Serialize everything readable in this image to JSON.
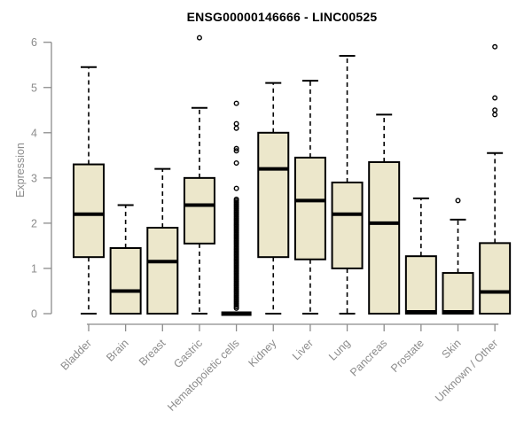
{
  "chart_data": {
    "type": "boxplot",
    "title": "ENSG00000146666 - LINC00525",
    "ylabel": "Expression",
    "xlabel": "",
    "ylim": [
      0,
      6.2
    ],
    "yticks": [
      "0",
      "1",
      "2",
      "3",
      "4",
      "5",
      "6"
    ],
    "grid": false,
    "legend": null,
    "categories": [
      "Bladder",
      "Brain",
      "Breast",
      "Gastric",
      "Hematopoietic cells",
      "Kidney",
      "Liver",
      "Lung",
      "Pancreas",
      "Prostate",
      "Skin",
      "Unknown / Other"
    ],
    "boxes": [
      {
        "label": "Bladder",
        "whisker_low": 0,
        "q1": 1.25,
        "median": 2.2,
        "q3": 3.3,
        "whisker_high": 5.45,
        "outliers": []
      },
      {
        "label": "Brain",
        "whisker_low": 0,
        "q1": 0,
        "median": 0.5,
        "q3": 1.45,
        "whisker_high": 2.4,
        "outliers": []
      },
      {
        "label": "Breast",
        "whisker_low": 0,
        "q1": 0,
        "median": 1.15,
        "q3": 1.9,
        "whisker_high": 3.2,
        "outliers": []
      },
      {
        "label": "Gastric",
        "whisker_low": 0,
        "q1": 1.55,
        "median": 2.4,
        "q3": 3.0,
        "whisker_high": 4.55,
        "outliers": [
          6.1
        ]
      },
      {
        "label": "Hematopoietic cells",
        "whisker_low": 0,
        "q1": 0,
        "median": 0,
        "q3": 0,
        "whisker_high": 0,
        "outliers": [
          4.65,
          4.2,
          4.1,
          3.65,
          3.6,
          3.33,
          2.77
        ],
        "outlier_stack": {
          "min": 0.12,
          "max": 2.53,
          "count": 70
        }
      },
      {
        "label": "Kidney",
        "whisker_low": 0,
        "q1": 1.25,
        "median": 3.2,
        "q3": 4.0,
        "whisker_high": 5.1,
        "outliers": []
      },
      {
        "label": "Liver",
        "whisker_low": 0,
        "q1": 1.2,
        "median": 2.5,
        "q3": 3.45,
        "whisker_high": 5.15,
        "outliers": []
      },
      {
        "label": "Lung",
        "whisker_low": 0,
        "q1": 1.0,
        "median": 2.2,
        "q3": 2.9,
        "whisker_high": 5.7,
        "outliers": []
      },
      {
        "label": "Pancreas",
        "whisker_low": 0,
        "q1": 0,
        "median": 2.0,
        "q3": 3.35,
        "whisker_high": 4.4,
        "outliers": []
      },
      {
        "label": "Prostate",
        "whisker_low": 0,
        "q1": 0,
        "median": 0.04,
        "q3": 1.27,
        "whisker_high": 2.55,
        "outliers": []
      },
      {
        "label": "Skin",
        "whisker_low": 0,
        "q1": 0,
        "median": 0.04,
        "q3": 0.9,
        "whisker_high": 2.08,
        "outliers": [
          2.5
        ]
      },
      {
        "label": "Unknown / Other",
        "whisker_low": 0,
        "q1": 0,
        "median": 0.48,
        "q3": 1.56,
        "whisker_high": 3.55,
        "outliers": [
          5.9,
          4.77,
          4.5,
          4.4
        ]
      }
    ],
    "colors": {
      "box_fill": "#ECE7CB",
      "box_border": "#000000",
      "median": "#000000",
      "whisker": "#000000",
      "outlier": "#000000",
      "axis": "#8C8C8C",
      "tick_label": "#8C8C8C",
      "title": "#000000",
      "background": "#FFFFFF"
    }
  }
}
